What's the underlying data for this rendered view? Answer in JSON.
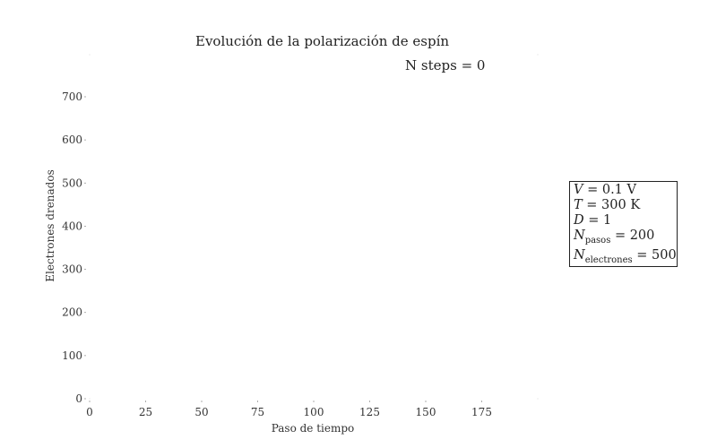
{
  "chart_data": {
    "type": "line",
    "title": "Evolución de la polarización de espín",
    "subtitle": "N steps = 0",
    "xlabel": "Paso de tiempo",
    "ylabel": "Electrones drenados",
    "xlim": [
      0,
      200
    ],
    "ylim": [
      0,
      700
    ],
    "x_ticks": [
      0,
      25,
      50,
      75,
      100,
      125,
      150,
      175
    ],
    "y_ticks": [
      0,
      100,
      200,
      300,
      400,
      500,
      600,
      700
    ],
    "series": [],
    "grid": false
  },
  "info_box": {
    "lines": [
      "V = 0.1 V",
      "T = 300 K",
      "D = 1",
      "N_pasos = 200",
      "N_electrones = 500"
    ]
  }
}
